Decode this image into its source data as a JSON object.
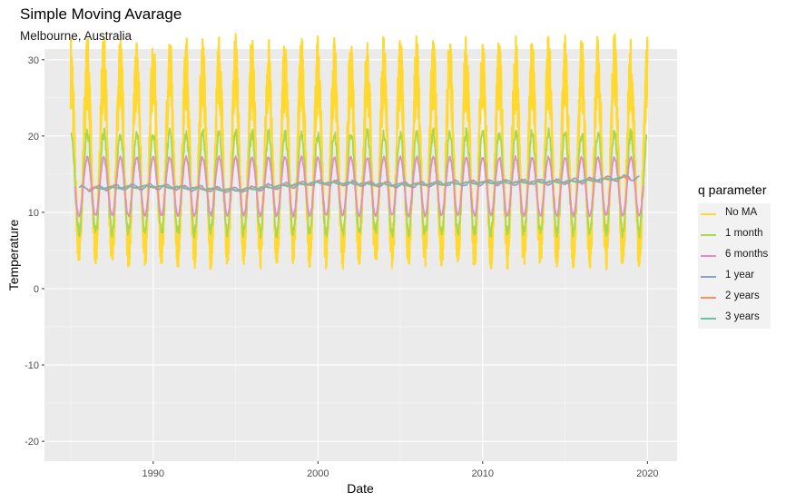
{
  "chart_data": {
    "type": "line",
    "title": "Simple Moving Avarage",
    "subtitle": "Melbourne, Australia",
    "xlabel": "Date",
    "ylabel": "Temperature",
    "x_ticks": [
      1990,
      2000,
      2010,
      2020
    ],
    "y_ticks": [
      -20,
      -10,
      0,
      10,
      20,
      30
    ],
    "xlim": [
      1983.4,
      2021.8
    ],
    "ylim": [
      -22.6,
      31.4
    ],
    "grid": true,
    "legend_title": "q parameter",
    "legend_position": "right",
    "series": [
      {
        "name": "No MA",
        "color": "#FFD92F",
        "summer_peak": 28.5,
        "winter_trough": 5.0
      },
      {
        "name": "1 month",
        "color": "#A6D854",
        "summer_peak": 20.3,
        "winter_trough": 7.4
      },
      {
        "name": "6 months",
        "color": "#E78AC3",
        "summer_peak": 17.2,
        "winter_trough": 9.6
      },
      {
        "name": "1 year",
        "color": "#8DA0CB"
      },
      {
        "name": "2 years",
        "color": "#FC8D62"
      },
      {
        "name": "3 years",
        "color": "#66C2A5"
      }
    ],
    "x_range": [
      1985,
      2020
    ],
    "long_term_mean": [
      {
        "x": 1985.5,
        "y": 13.1
      },
      {
        "x": 1990,
        "y": 13.4
      },
      {
        "x": 1995,
        "y": 12.9
      },
      {
        "x": 2000,
        "y": 13.9
      },
      {
        "x": 2005,
        "y": 13.6
      },
      {
        "x": 2010,
        "y": 13.9
      },
      {
        "x": 2015,
        "y": 14.0
      },
      {
        "x": 2019.5,
        "y": 14.6
      }
    ]
  }
}
